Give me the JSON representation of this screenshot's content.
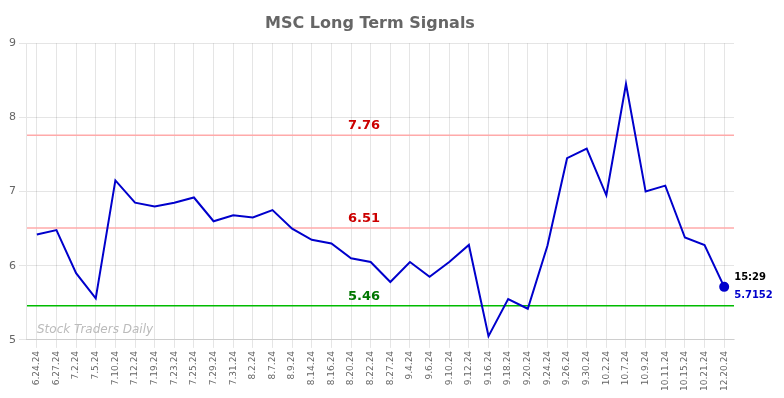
{
  "chart_data": {
    "type": "line",
    "title": "MSC Long Term Signals",
    "categories": [
      "6.24.24",
      "6.27.24",
      "7.2.24",
      "7.5.24",
      "7.10.24",
      "7.12.24",
      "7.19.24",
      "7.23.24",
      "7.25.24",
      "7.29.24",
      "7.31.24",
      "8.2.24",
      "8.7.24",
      "8.9.24",
      "8.14.24",
      "8.16.24",
      "8.20.24",
      "8.22.24",
      "8.27.24",
      "9.4.24",
      "9.6.24",
      "9.10.24",
      "9.12.24",
      "9.16.24",
      "9.18.24",
      "9.20.24",
      "9.24.24",
      "9.26.24",
      "9.30.24",
      "10.2.24",
      "10.7.24",
      "10.9.24",
      "10.11.24",
      "10.15.24",
      "10.21.24",
      "12.20.24"
    ],
    "values": [
      6.42,
      6.48,
      5.9,
      5.56,
      7.15,
      6.85,
      6.8,
      6.85,
      6.92,
      6.6,
      6.68,
      6.65,
      6.75,
      6.5,
      6.35,
      6.3,
      6.1,
      6.05,
      5.78,
      6.05,
      5.85,
      6.05,
      6.28,
      5.05,
      5.55,
      5.42,
      6.27,
      7.45,
      7.58,
      6.95,
      8.45,
      7.0,
      7.08,
      6.38,
      6.28,
      5.7152
    ],
    "color": "#0000cc",
    "ylim": [
      5.0,
      9.0
    ],
    "yticks": [
      5,
      6,
      7,
      8,
      9
    ],
    "grid": true,
    "reference_lines": [
      {
        "value": 7.76,
        "label": "7.76",
        "color": "#ffaaaa",
        "label_color": "#cc0000"
      },
      {
        "value": 6.51,
        "label": "6.51",
        "color": "#ffaaaa",
        "label_color": "#cc0000"
      },
      {
        "value": 5.46,
        "label": "5.46",
        "color": "#00bb00",
        "label_color": "#007700"
      }
    ],
    "last_point": {
      "marker": "circle",
      "color": "#0000cc",
      "time_label": "15:29",
      "value_label": "5.7152"
    },
    "watermark": {
      "text": "Stock Traders Daily",
      "color": "#bbbbbb"
    }
  }
}
